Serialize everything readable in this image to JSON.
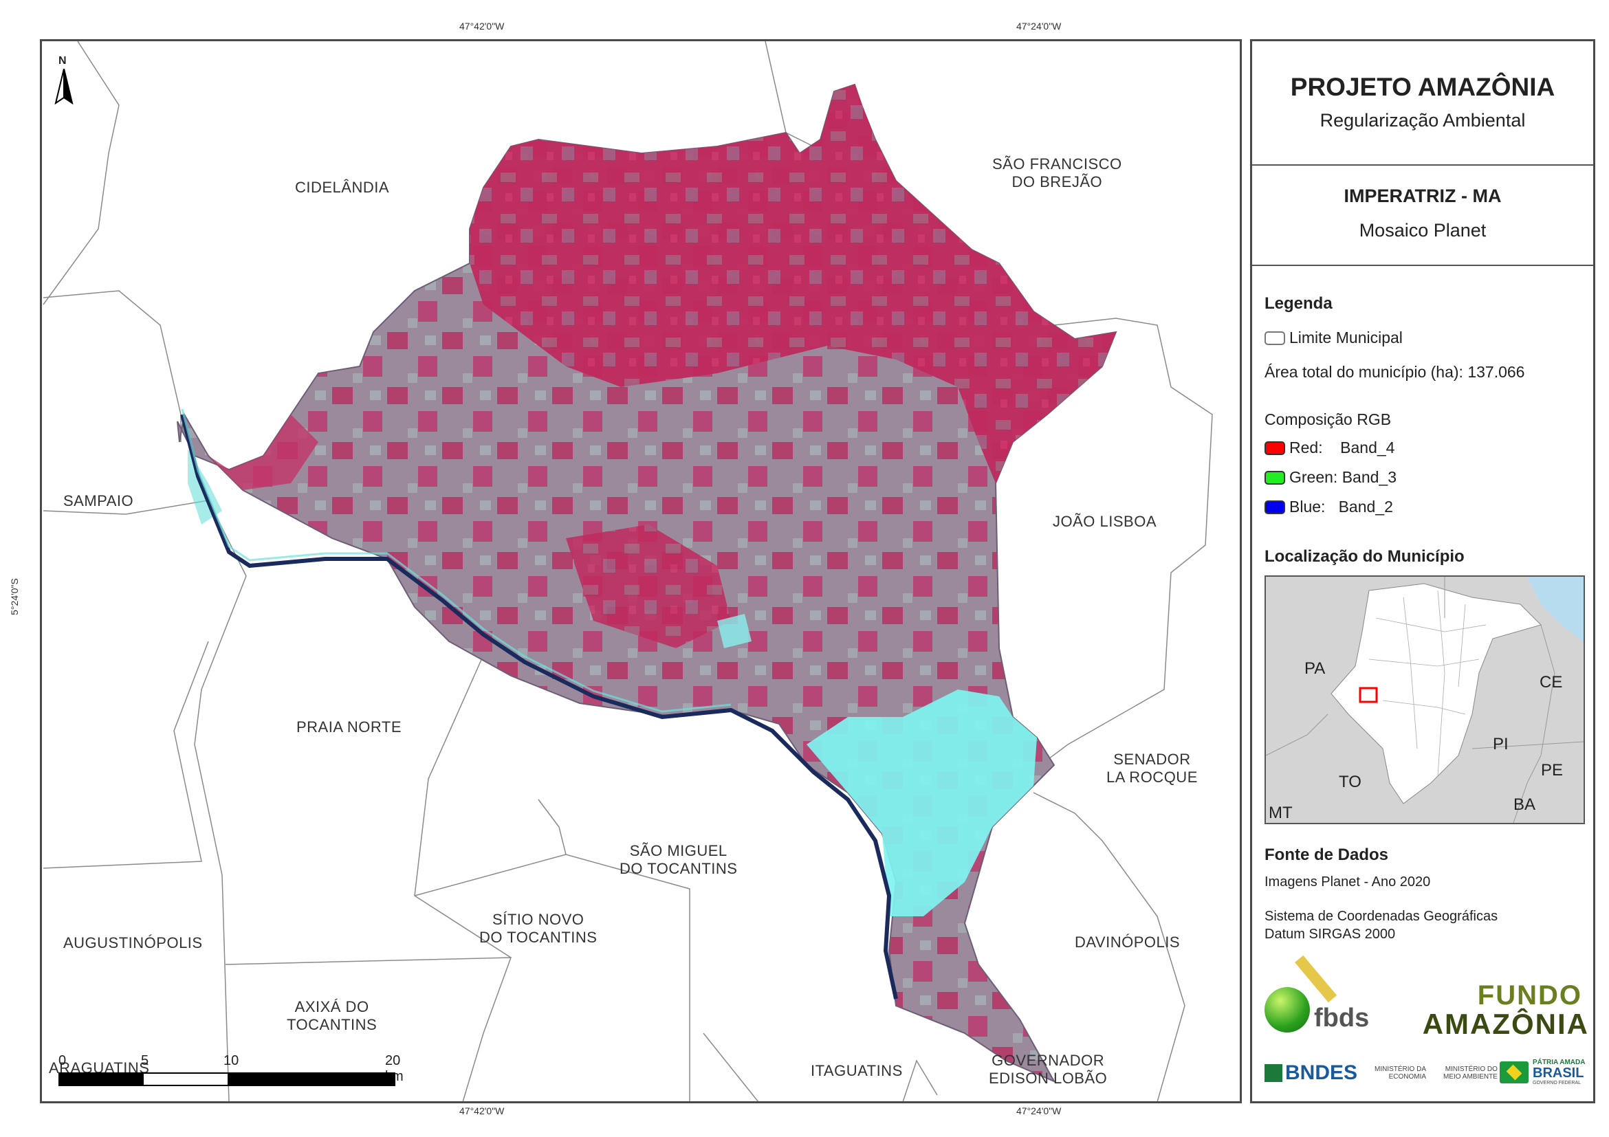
{
  "coords": {
    "top_left": "47°42'0\"W",
    "top_right": "47°24'0\"W",
    "bottom_left": "47°42'0\"W",
    "bottom_right": "47°24'0\"W",
    "left_lat": "5°24'0\"S"
  },
  "north_label": "N",
  "municipalities": {
    "cidelandia": "CIDELÂNDIA",
    "sao_francisco": [
      "SÃO FRANCISCO",
      "DO BREJÃO"
    ],
    "sampaio": "SAMPAIO",
    "joao_lisboa": "JOÃO LISBOA",
    "praia_norte": "PRAIA NORTE",
    "senador": [
      "SENADOR",
      "LA ROCQUE"
    ],
    "sao_miguel": [
      "SÃO MIGUEL",
      "DO TOCANTINS"
    ],
    "sitio_novo": [
      "SÍTIO NOVO",
      "DO TOCANTINS"
    ],
    "augustinopolis": "AUGUSTINÓPOLIS",
    "davinopolis": "DAVINÓPOLIS",
    "axixa": [
      "AXIXÁ DO",
      "TOCANTINS"
    ],
    "araguatins": "ARAGUATINS",
    "itaguatins": "ITAGUATINS",
    "governador": [
      "GOVERNADOR",
      "EDISON LOBÃO"
    ]
  },
  "scale_bar": {
    "ticks": [
      "0",
      "5",
      "10",
      "20 km"
    ]
  },
  "panel": {
    "title": "PROJETO AMAZÔNIA",
    "subtitle": "Regularização Ambiental",
    "place": "IMPERATRIZ - MA",
    "mosaic": "Mosaico Planet",
    "legend_title": "Legenda",
    "limit_label": "Limite Municipal",
    "area_label": "Área total do município (ha): 137.066",
    "rgb_title": "Composição RGB",
    "rgb": [
      {
        "label": "Red:    Band_4",
        "color": "#ff0000"
      },
      {
        "label": "Green: Band_3",
        "color": "#22ee22"
      },
      {
        "label": "Blue:   Band_2",
        "color": "#0000ee"
      }
    ],
    "location_title": "Localização do Município",
    "inset_states": [
      "PA",
      "CE",
      "PI",
      "PE",
      "TO",
      "BA",
      "MT"
    ],
    "sources_title": "Fonte de Dados",
    "sources_line": "Imagens Planet - Ano 2020",
    "crs_line1": "Sistema de Coordenadas Geográficas",
    "crs_line2": "Datum SIRGAS 2000",
    "logos": {
      "fbds": "fbds",
      "fundo1": "FUNDO",
      "fundo2": "AMAZÔNIA",
      "bndes": "BNDES",
      "min1": [
        "MINISTÉRIO DA",
        "ECONOMIA"
      ],
      "min2": [
        "MINISTÉRIO DO",
        "MEIO AMBIENTE"
      ],
      "patria": [
        "PÁTRIA AMADA",
        "BRASIL",
        "GOVERNO FEDERAL"
      ]
    }
  },
  "colors": {
    "vegetation": "#c0245c",
    "urban": "#7ff3f0",
    "water": "#1a2a5c",
    "ocean": "#b8dcef",
    "highlight": "#ff0000"
  }
}
